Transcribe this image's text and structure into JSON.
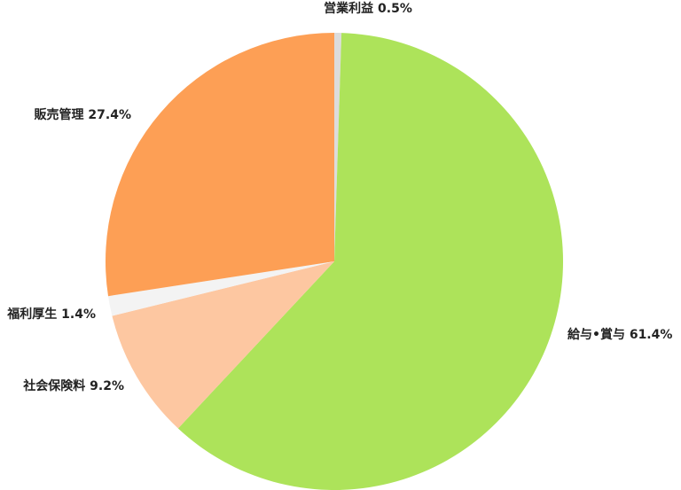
{
  "chart_data": {
    "type": "pie",
    "title": "",
    "start": "top",
    "direction": "clockwise",
    "slices": [
      {
        "label": "営業利益",
        "value": 0.5,
        "display": "営業利益 0.5%",
        "color": "#dcdcdc"
      },
      {
        "label": "給与・賞与",
        "value": 61.4,
        "display": "給与•賞与 61.4%",
        "color": "#ade35a"
      },
      {
        "label": "社会保険料",
        "value": 9.2,
        "display": "社会保険料 9.2%",
        "color": "#fdc7a1"
      },
      {
        "label": "福利厚生",
        "value": 1.4,
        "display": "福利厚生 1.4%",
        "color": "#f3f3f3"
      },
      {
        "label": "販売管理",
        "value": 27.4,
        "display": "販売管理 27.4%",
        "color": "#fd9f55"
      }
    ]
  }
}
